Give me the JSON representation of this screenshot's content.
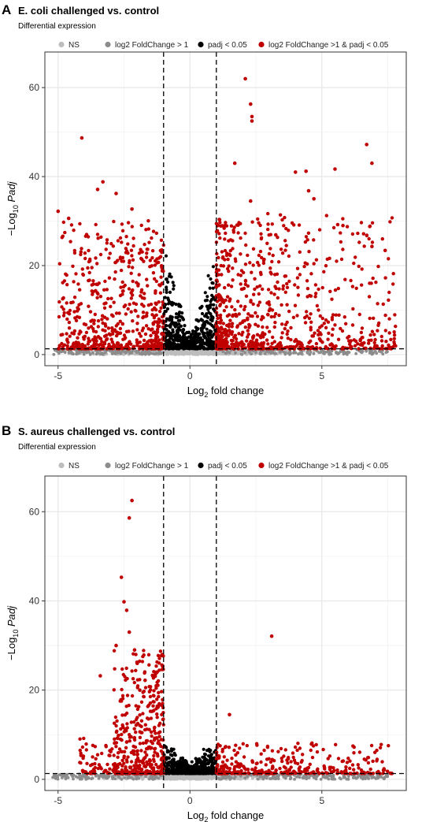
{
  "chart_data": [
    {
      "type": "scatter",
      "panel": "A",
      "title": "E. coli challenged vs. control",
      "subtitle": "Differential expression",
      "legend": [
        "NS",
        "log2 FoldChange > 1",
        "padj < 0.05",
        "log2 FoldChange >1 & padj < 0.05"
      ],
      "legend_position": "top",
      "xlabel": {
        "main": "Log",
        "sub": "2",
        "rest": " fold change"
      },
      "ylabel": {
        "pre": "−Log",
        "sub": "10",
        "italic": " Padj"
      },
      "xlim": [
        -5.5,
        8.2
      ],
      "ylim": [
        -2.5,
        68
      ],
      "xticks": [
        -5,
        0,
        5
      ],
      "yticks": [
        0,
        20,
        40,
        60
      ],
      "grid": true,
      "thresholds": {
        "fc": [
          -1,
          1
        ],
        "padj_y": 1.3
      },
      "colors": {
        "NS": "#bdbdbd",
        "FC": "#8c8c8c",
        "P": "#000000",
        "BOTH": "#c00000"
      },
      "highlights": [
        {
          "x": 2.1,
          "y": 62.0
        },
        {
          "x": 2.3,
          "y": 56.3
        },
        {
          "x": 2.35,
          "y": 53.5
        },
        {
          "x": 2.35,
          "y": 52.5
        },
        {
          "x": 1.7,
          "y": 43.0
        },
        {
          "x": -4.1,
          "y": 48.7
        },
        {
          "x": 6.7,
          "y": 47.2
        },
        {
          "x": 6.9,
          "y": 43.0
        },
        {
          "x": 5.5,
          "y": 41.7
        },
        {
          "x": 4.0,
          "y": 41.0
        },
        {
          "x": 4.4,
          "y": 41.2
        },
        {
          "x": 4.5,
          "y": 36.8
        },
        {
          "x": 4.7,
          "y": 35.0
        },
        {
          "x": -3.3,
          "y": 38.8
        },
        {
          "x": -3.5,
          "y": 37.1
        },
        {
          "x": -2.8,
          "y": 36.2
        },
        {
          "x": -2.2,
          "y": 32.7
        },
        {
          "x": -4.6,
          "y": 30.6
        },
        {
          "x": -5.0,
          "y": 32.2
        },
        {
          "x": 2.3,
          "y": 34.5
        },
        {
          "x": 5.6,
          "y": 29.2
        },
        {
          "x": 5.8,
          "y": 29.0
        },
        {
          "x": 7.4,
          "y": 23.4
        },
        {
          "x": 6.9,
          "y": 24.3
        }
      ],
      "random_seed": 11
    },
    {
      "type": "scatter",
      "panel": "B",
      "title": "S. aureus challenged vs. control",
      "subtitle": "Differential expression",
      "legend": [
        "NS",
        "log2 FoldChange > 1",
        "padj < 0.05",
        "log2 FoldChange >1 & padj < 0.05"
      ],
      "legend_position": "top",
      "xlabel": {
        "main": "Log",
        "sub": "2",
        "rest": " fold change"
      },
      "ylabel": {
        "pre": "−Log",
        "sub": "10",
        "italic": " Padj"
      },
      "xlim": [
        -5.5,
        8.2
      ],
      "ylim": [
        -2.5,
        68
      ],
      "xticks": [
        -5,
        0,
        5
      ],
      "yticks": [
        0,
        20,
        40,
        60
      ],
      "grid": true,
      "thresholds": {
        "fc": [
          -1,
          1
        ],
        "padj_y": 1.3
      },
      "colors": {
        "NS": "#bdbdbd",
        "FC": "#8c8c8c",
        "P": "#000000",
        "BOTH": "#c00000"
      },
      "highlights": [
        {
          "x": -2.2,
          "y": 62.5
        },
        {
          "x": -2.3,
          "y": 58.6
        },
        {
          "x": -2.6,
          "y": 45.3
        },
        {
          "x": -2.5,
          "y": 39.8
        },
        {
          "x": -2.4,
          "y": 37.9
        },
        {
          "x": -2.3,
          "y": 33.0
        },
        {
          "x": 3.1,
          "y": 32.1
        },
        {
          "x": -2.8,
          "y": 30.0
        },
        {
          "x": -2.1,
          "y": 29.0
        },
        {
          "x": -1.7,
          "y": 22.2
        },
        {
          "x": -1.9,
          "y": 20.0
        },
        {
          "x": 1.5,
          "y": 14.5
        },
        {
          "x": -3.4,
          "y": 23.2
        },
        {
          "x": -2.0,
          "y": 26.0
        }
      ],
      "random_seed": 29
    }
  ]
}
